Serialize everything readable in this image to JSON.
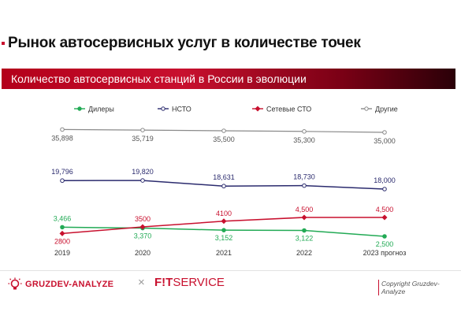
{
  "page": {
    "title": "Рынок автосервисных услуг в количестве точек",
    "banner": "Количество автосервисных станций в России в эволюции"
  },
  "chart_data": {
    "type": "line",
    "title": "Количество автосервисных станций в России в эволюции",
    "categories": [
      "2019",
      "2020",
      "2021",
      "2022",
      "2023 прогноз"
    ],
    "series": [
      {
        "name": "Дилеры",
        "values": [
          3466,
          3370,
          3152,
          3122,
          2500
        ],
        "labels": [
          "3,466",
          "3,370",
          "3,152",
          "3,122",
          "2,500"
        ],
        "color": "#22aa55"
      },
      {
        "name": "НСТО",
        "values": [
          19796,
          19820,
          18631,
          18730,
          18000
        ],
        "labels": [
          "19,796",
          "19,820",
          "18,631",
          "18,730",
          "18,000"
        ],
        "color": "#2b2b6e"
      },
      {
        "name": "Сетевые СТО",
        "values": [
          2800,
          3500,
          4100,
          4500,
          4500
        ],
        "labels": [
          "2800",
          "3500",
          "4100",
          "4,500",
          "4,500"
        ],
        "color": "#c8102e"
      },
      {
        "name": "Другие",
        "values": [
          35898,
          35719,
          35500,
          35300,
          35000
        ],
        "labels": [
          "35,898",
          "35,719",
          "35,500",
          "35,300",
          "35,000"
        ],
        "color": "#8a8a8a"
      }
    ],
    "legend_position": "top",
    "grid": false
  },
  "footer": {
    "logo_left": "GRUZDEV-ANALYZE",
    "separator": "×",
    "logo_right_bold": "F!T",
    "logo_right_light": "SERVICE",
    "copyright": "Copyright Gruzdev-Analyze"
  }
}
